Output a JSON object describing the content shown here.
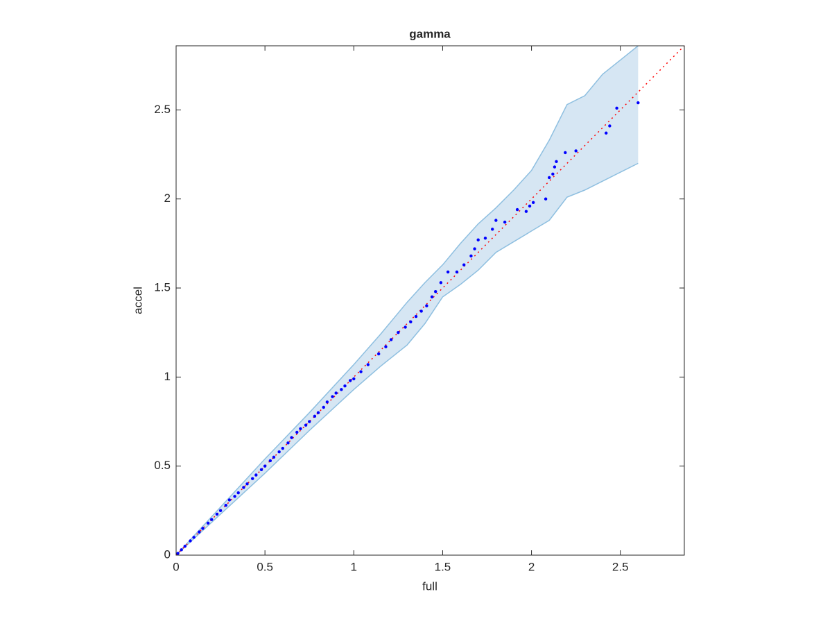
{
  "chart_data": {
    "type": "scatter",
    "title": "gamma",
    "xlabel": "full",
    "ylabel": "accel",
    "xlim": [
      0,
      2.86
    ],
    "ylim": [
      0,
      2.86
    ],
    "xticks": [
      0,
      0.5,
      1,
      1.5,
      2,
      2.5
    ],
    "yticks": [
      0,
      0.5,
      1,
      1.5,
      2,
      2.5
    ],
    "grid": false,
    "points": {
      "color": "#0000ff",
      "x": [
        0.01,
        0.03,
        0.05,
        0.08,
        0.1,
        0.13,
        0.15,
        0.18,
        0.2,
        0.23,
        0.25,
        0.28,
        0.3,
        0.33,
        0.35,
        0.38,
        0.4,
        0.43,
        0.45,
        0.48,
        0.5,
        0.53,
        0.55,
        0.58,
        0.6,
        0.63,
        0.65,
        0.68,
        0.7,
        0.73,
        0.75,
        0.78,
        0.8,
        0.83,
        0.85,
        0.88,
        0.9,
        0.93,
        0.95,
        0.98,
        1.0,
        1.04,
        1.08,
        1.14,
        1.18,
        1.21,
        1.25,
        1.29,
        1.32,
        1.35,
        1.38,
        1.41,
        1.44,
        1.46,
        1.49,
        1.53,
        1.58,
        1.62,
        1.66,
        1.68,
        1.7,
        1.74,
        1.78,
        1.8,
        1.85,
        1.92,
        1.97,
        1.99,
        2.01,
        2.08,
        2.1,
        2.12,
        2.13,
        2.14,
        2.19,
        2.25,
        2.42,
        2.44,
        2.48,
        2.6
      ],
      "y": [
        0.01,
        0.03,
        0.05,
        0.08,
        0.1,
        0.13,
        0.15,
        0.18,
        0.2,
        0.23,
        0.25,
        0.28,
        0.31,
        0.33,
        0.35,
        0.38,
        0.4,
        0.43,
        0.45,
        0.48,
        0.5,
        0.53,
        0.55,
        0.58,
        0.6,
        0.63,
        0.66,
        0.69,
        0.71,
        0.73,
        0.75,
        0.78,
        0.8,
        0.83,
        0.86,
        0.89,
        0.91,
        0.93,
        0.95,
        0.98,
        0.99,
        1.03,
        1.07,
        1.13,
        1.17,
        1.21,
        1.25,
        1.28,
        1.31,
        1.34,
        1.37,
        1.4,
        1.45,
        1.48,
        1.53,
        1.59,
        1.59,
        1.63,
        1.68,
        1.72,
        1.77,
        1.78,
        1.83,
        1.88,
        1.87,
        1.94,
        1.93,
        1.96,
        1.98,
        2.0,
        2.12,
        2.14,
        2.18,
        2.21,
        2.26,
        2.27,
        2.37,
        2.41,
        2.51,
        2.54
      ]
    },
    "band": {
      "color": "#d6e6f3",
      "edge_color": "#8ebfe0",
      "x": [
        0,
        0.25,
        0.5,
        0.75,
        1.0,
        1.15,
        1.3,
        1.4,
        1.5,
        1.6,
        1.7,
        1.8,
        1.9,
        2.0,
        2.1,
        2.2,
        2.3,
        2.4,
        2.5,
        2.6
      ],
      "upper": [
        0,
        0.27,
        0.54,
        0.8,
        1.07,
        1.24,
        1.42,
        1.53,
        1.63,
        1.75,
        1.86,
        1.95,
        2.05,
        2.16,
        2.33,
        2.53,
        2.58,
        2.7,
        2.78,
        2.86
      ],
      "lower": [
        0,
        0.23,
        0.46,
        0.7,
        0.93,
        1.06,
        1.18,
        1.3,
        1.45,
        1.52,
        1.6,
        1.7,
        1.76,
        1.82,
        1.88,
        2.01,
        2.05,
        2.1,
        2.15,
        2.2
      ]
    },
    "reference_line": {
      "color": "#ff0000",
      "x": [
        0,
        2.86
      ],
      "y": [
        0,
        2.86
      ]
    }
  }
}
